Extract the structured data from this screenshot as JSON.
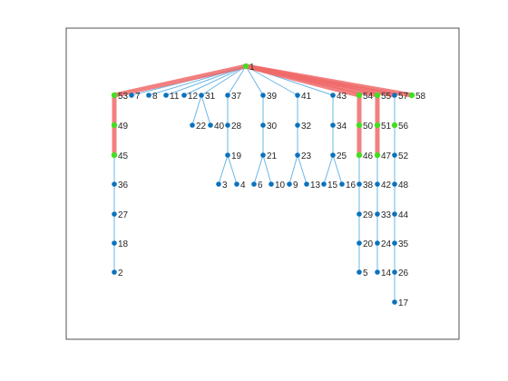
{
  "figure": {
    "type": "graph-tree-plot",
    "axes_box": true,
    "colors": {
      "edge": "#6ab7e6",
      "highlight_edge": "#f06a6a",
      "node": "#0b72bd",
      "highlight_node": "#44dd22",
      "axes": "#262626",
      "label": "#262626"
    }
  },
  "graph": {
    "root": "1",
    "nodes": [
      {
        "id": "1",
        "label": "1",
        "highlight": true
      },
      {
        "id": "53",
        "label": "53",
        "highlight": true
      },
      {
        "id": "7",
        "label": "7",
        "highlight": false
      },
      {
        "id": "8",
        "label": "8",
        "highlight": false
      },
      {
        "id": "11",
        "label": "11",
        "highlight": false
      },
      {
        "id": "12",
        "label": "12",
        "highlight": false
      },
      {
        "id": "31",
        "label": "31",
        "highlight": false
      },
      {
        "id": "37",
        "label": "37",
        "highlight": false
      },
      {
        "id": "39",
        "label": "39",
        "highlight": false
      },
      {
        "id": "41",
        "label": "41",
        "highlight": false
      },
      {
        "id": "43",
        "label": "43",
        "highlight": false
      },
      {
        "id": "54",
        "label": "54",
        "highlight": true
      },
      {
        "id": "55",
        "label": "55",
        "highlight": true
      },
      {
        "id": "57",
        "label": "57",
        "highlight": false
      },
      {
        "id": "58",
        "label": "58",
        "highlight": true
      },
      {
        "id": "49",
        "label": "49",
        "highlight": true
      },
      {
        "id": "22",
        "label": "22",
        "highlight": false
      },
      {
        "id": "40",
        "label": "40",
        "highlight": false
      },
      {
        "id": "28",
        "label": "28",
        "highlight": false
      },
      {
        "id": "30",
        "label": "30",
        "highlight": false
      },
      {
        "id": "32",
        "label": "32",
        "highlight": false
      },
      {
        "id": "34",
        "label": "34",
        "highlight": false
      },
      {
        "id": "50",
        "label": "50",
        "highlight": true
      },
      {
        "id": "51",
        "label": "51",
        "highlight": true
      },
      {
        "id": "56",
        "label": "56",
        "highlight": true
      },
      {
        "id": "45",
        "label": "45",
        "highlight": true
      },
      {
        "id": "19",
        "label": "19",
        "highlight": false
      },
      {
        "id": "21",
        "label": "21",
        "highlight": false
      },
      {
        "id": "23",
        "label": "23",
        "highlight": false
      },
      {
        "id": "25",
        "label": "25",
        "highlight": false
      },
      {
        "id": "46",
        "label": "46",
        "highlight": true
      },
      {
        "id": "47",
        "label": "47",
        "highlight": true
      },
      {
        "id": "52",
        "label": "52",
        "highlight": false
      },
      {
        "id": "36",
        "label": "36",
        "highlight": false
      },
      {
        "id": "3",
        "label": "3",
        "highlight": false
      },
      {
        "id": "4",
        "label": "4",
        "highlight": false
      },
      {
        "id": "6",
        "label": "6",
        "highlight": false
      },
      {
        "id": "10",
        "label": "10",
        "highlight": false
      },
      {
        "id": "9",
        "label": "9",
        "highlight": false
      },
      {
        "id": "13",
        "label": "13",
        "highlight": false
      },
      {
        "id": "15",
        "label": "15",
        "highlight": false
      },
      {
        "id": "16",
        "label": "16",
        "highlight": false
      },
      {
        "id": "38",
        "label": "38",
        "highlight": false
      },
      {
        "id": "42",
        "label": "42",
        "highlight": false
      },
      {
        "id": "48",
        "label": "48",
        "highlight": false
      },
      {
        "id": "27",
        "label": "27",
        "highlight": false
      },
      {
        "id": "29",
        "label": "29",
        "highlight": false
      },
      {
        "id": "33",
        "label": "33",
        "highlight": false
      },
      {
        "id": "44",
        "label": "44",
        "highlight": false
      },
      {
        "id": "18",
        "label": "18",
        "highlight": false
      },
      {
        "id": "20",
        "label": "20",
        "highlight": false
      },
      {
        "id": "24",
        "label": "24",
        "highlight": false
      },
      {
        "id": "35",
        "label": "35",
        "highlight": false
      },
      {
        "id": "2",
        "label": "2",
        "highlight": false
      },
      {
        "id": "5",
        "label": "5",
        "highlight": false
      },
      {
        "id": "14",
        "label": "14",
        "highlight": false
      },
      {
        "id": "26",
        "label": "26",
        "highlight": false
      },
      {
        "id": "17",
        "label": "17",
        "highlight": false
      }
    ],
    "edges": [
      {
        "from": "1",
        "to": "53",
        "highlight": true
      },
      {
        "from": "1",
        "to": "7",
        "highlight": false
      },
      {
        "from": "1",
        "to": "8",
        "highlight": false
      },
      {
        "from": "1",
        "to": "11",
        "highlight": false
      },
      {
        "from": "1",
        "to": "12",
        "highlight": false
      },
      {
        "from": "1",
        "to": "31",
        "highlight": false
      },
      {
        "from": "1",
        "to": "37",
        "highlight": false
      },
      {
        "from": "1",
        "to": "39",
        "highlight": false
      },
      {
        "from": "1",
        "to": "41",
        "highlight": false
      },
      {
        "from": "1",
        "to": "43",
        "highlight": false
      },
      {
        "from": "1",
        "to": "54",
        "highlight": true
      },
      {
        "from": "1",
        "to": "55",
        "highlight": true
      },
      {
        "from": "1",
        "to": "57",
        "highlight": true
      },
      {
        "from": "1",
        "to": "58",
        "highlight": true
      },
      {
        "from": "53",
        "to": "49",
        "highlight": true
      },
      {
        "from": "49",
        "to": "45",
        "highlight": true
      },
      {
        "from": "45",
        "to": "36",
        "highlight": false
      },
      {
        "from": "36",
        "to": "27",
        "highlight": false
      },
      {
        "from": "27",
        "to": "18",
        "highlight": false
      },
      {
        "from": "18",
        "to": "2",
        "highlight": false
      },
      {
        "from": "31",
        "to": "22",
        "highlight": false
      },
      {
        "from": "31",
        "to": "40",
        "highlight": false
      },
      {
        "from": "37",
        "to": "28",
        "highlight": false
      },
      {
        "from": "28",
        "to": "19",
        "highlight": false
      },
      {
        "from": "19",
        "to": "3",
        "highlight": false
      },
      {
        "from": "19",
        "to": "4",
        "highlight": false
      },
      {
        "from": "39",
        "to": "30",
        "highlight": false
      },
      {
        "from": "30",
        "to": "21",
        "highlight": false
      },
      {
        "from": "21",
        "to": "6",
        "highlight": false
      },
      {
        "from": "21",
        "to": "10",
        "highlight": false
      },
      {
        "from": "41",
        "to": "32",
        "highlight": false
      },
      {
        "from": "32",
        "to": "23",
        "highlight": false
      },
      {
        "from": "23",
        "to": "9",
        "highlight": false
      },
      {
        "from": "23",
        "to": "13",
        "highlight": false
      },
      {
        "from": "43",
        "to": "34",
        "highlight": false
      },
      {
        "from": "34",
        "to": "25",
        "highlight": false
      },
      {
        "from": "25",
        "to": "15",
        "highlight": false
      },
      {
        "from": "25",
        "to": "16",
        "highlight": false
      },
      {
        "from": "54",
        "to": "50",
        "highlight": true
      },
      {
        "from": "50",
        "to": "46",
        "highlight": true
      },
      {
        "from": "46",
        "to": "38",
        "highlight": false
      },
      {
        "from": "38",
        "to": "29",
        "highlight": false
      },
      {
        "from": "29",
        "to": "20",
        "highlight": false
      },
      {
        "from": "20",
        "to": "5",
        "highlight": false
      },
      {
        "from": "55",
        "to": "51",
        "highlight": true
      },
      {
        "from": "51",
        "to": "47",
        "highlight": true
      },
      {
        "from": "47",
        "to": "42",
        "highlight": false
      },
      {
        "from": "42",
        "to": "33",
        "highlight": false
      },
      {
        "from": "33",
        "to": "24",
        "highlight": false
      },
      {
        "from": "24",
        "to": "14",
        "highlight": false
      },
      {
        "from": "57",
        "to": "56",
        "highlight": false
      },
      {
        "from": "56",
        "to": "52",
        "highlight": false
      },
      {
        "from": "52",
        "to": "48",
        "highlight": false
      },
      {
        "from": "48",
        "to": "44",
        "highlight": false
      },
      {
        "from": "44",
        "to": "35",
        "highlight": false
      },
      {
        "from": "35",
        "to": "26",
        "highlight": false
      },
      {
        "from": "26",
        "to": "17",
        "highlight": false
      }
    ]
  }
}
